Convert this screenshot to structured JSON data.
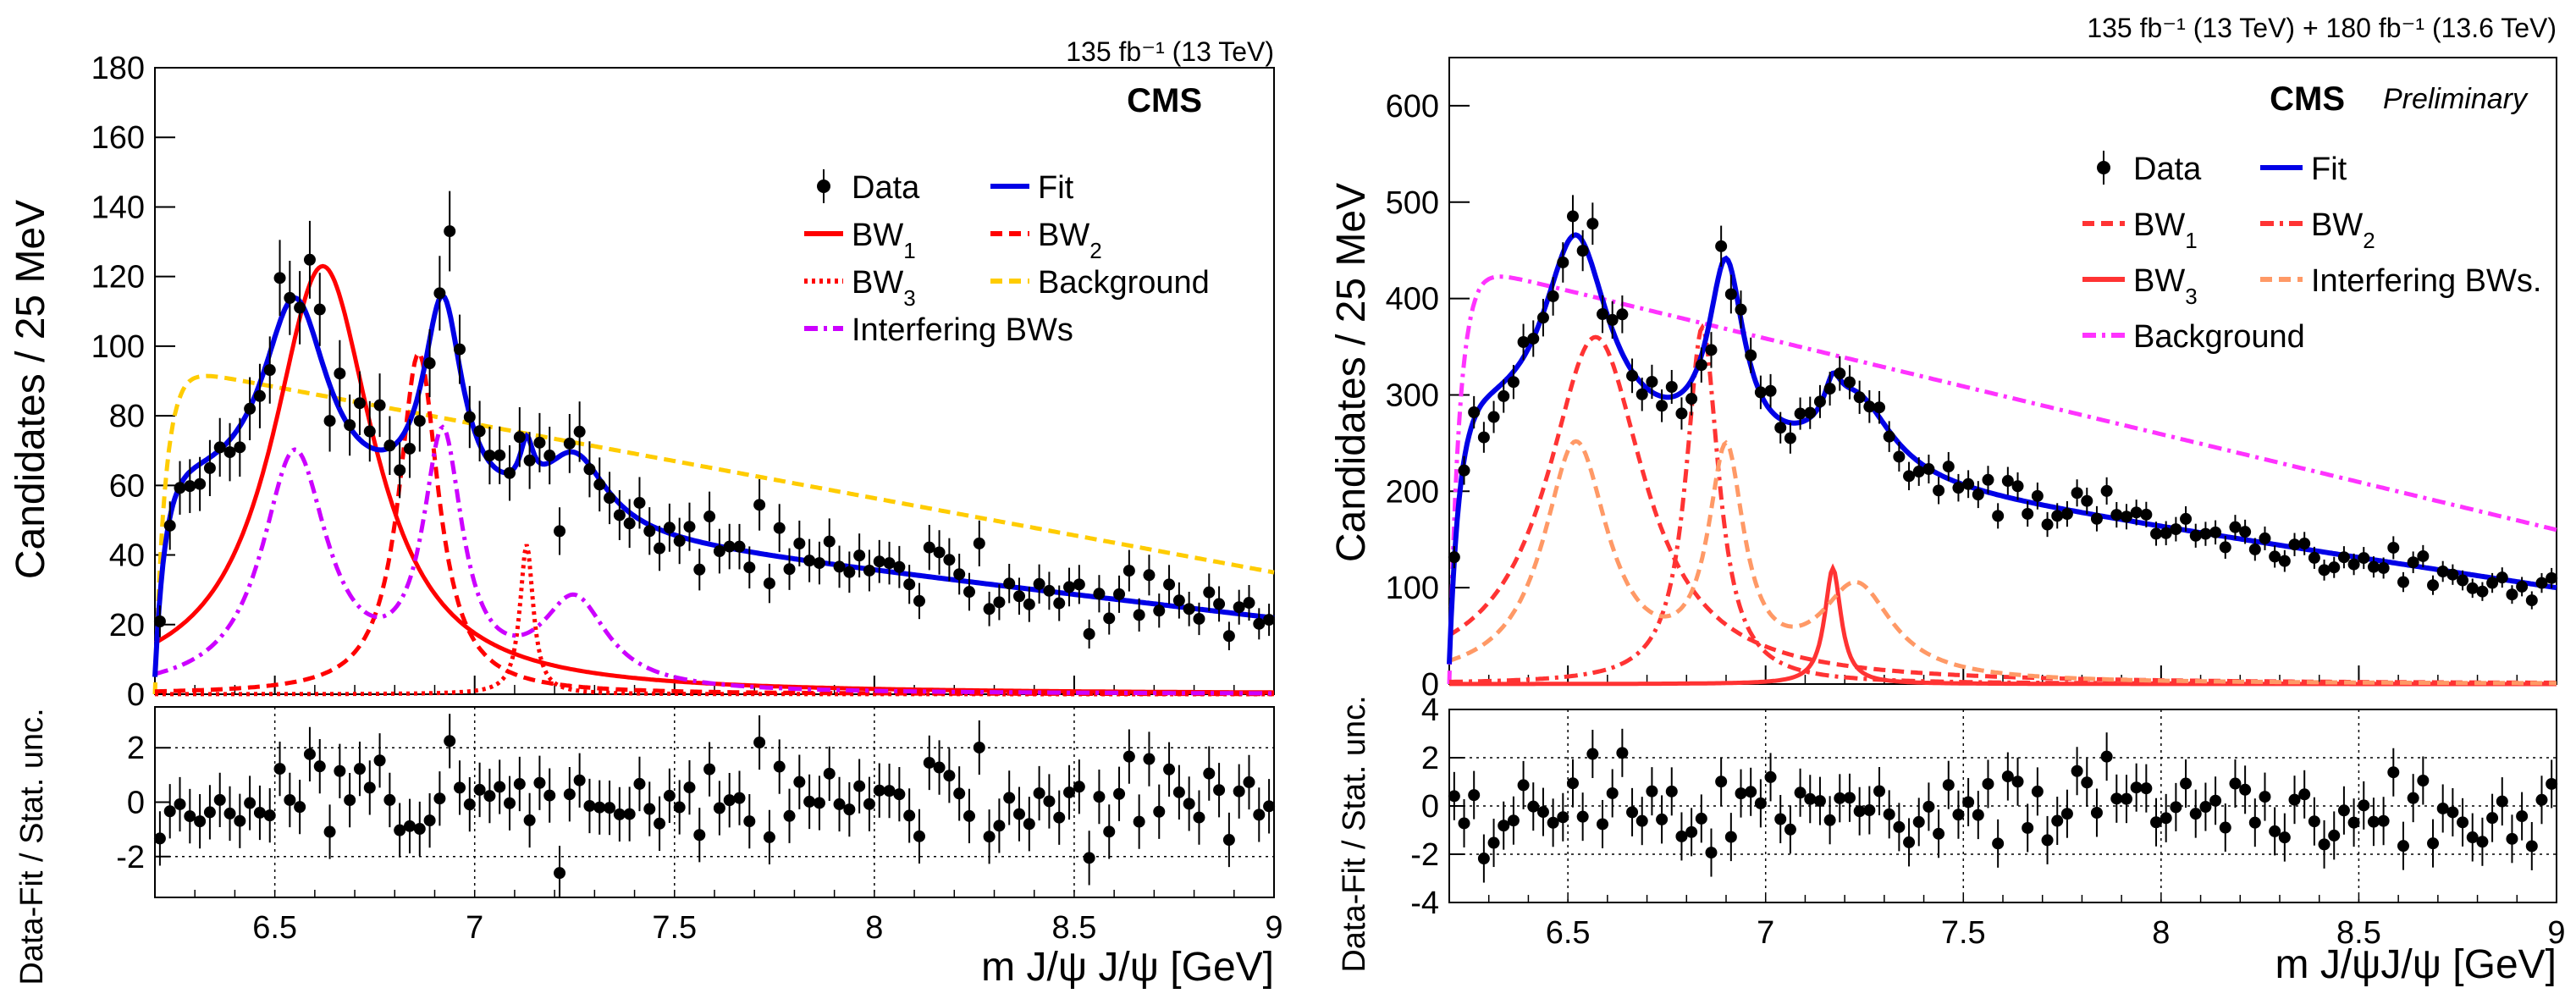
{
  "chart_data": [
    {
      "type": "line",
      "panel": "left",
      "lumi": "135 fb⁻¹ (13 TeV)",
      "experiment": "CMS",
      "xlabel": "m J/ψ J/ψ [GeV]",
      "ylabel": "Candidates / 25 MeV",
      "xlim": [
        6.2,
        9.0
      ],
      "ylim": [
        0,
        180
      ],
      "xticks": [
        "6.5",
        "7",
        "7.5",
        "8",
        "8.5",
        "9"
      ],
      "yticks": [
        "0",
        "20",
        "40",
        "60",
        "80",
        "100",
        "120",
        "140",
        "160",
        "180"
      ],
      "ratio": {
        "ylabel": "Data-Fit / Stat. unc.",
        "ylim": [
          -3.5,
          3.5
        ],
        "yticks": [
          "-2",
          "0",
          "2"
        ],
        "gridlines": [
          -2,
          2
        ]
      },
      "legend": [
        {
          "label": "Data",
          "sub": "",
          "style": "marker"
        },
        {
          "label": "Fit",
          "sub": "",
          "style": "solid",
          "color": "#0000e6"
        },
        {
          "label": "BW",
          "sub": "1",
          "style": "solid",
          "color": "#ff0000"
        },
        {
          "label": "BW",
          "sub": "2",
          "style": "dashed",
          "color": "#ff0000"
        },
        {
          "label": "BW",
          "sub": "3",
          "style": "dotted",
          "color": "#ff0000"
        },
        {
          "label": "Background",
          "sub": "",
          "style": "dashed",
          "color": "#ffcc00"
        },
        {
          "label": "Interfering BWs",
          "sub": "",
          "style": "dashdot",
          "color": "#cc00ff"
        }
      ],
      "components": {
        "bw1": {
          "mass": 6.62,
          "width": 0.31,
          "peak": 123
        },
        "bw2": {
          "mass": 6.86,
          "width": 0.12,
          "peak": 98
        },
        "bw3": {
          "mass": 7.13,
          "width": 0.04,
          "peak": 43
        },
        "interfering": [
          {
            "mass": 6.55,
            "width": 0.2,
            "peak": 68
          },
          {
            "mass": 6.92,
            "width": 0.12,
            "peak": 70
          },
          {
            "mass": 7.25,
            "width": 0.2,
            "peak": 25
          }
        ],
        "background": {
          "peak": 93,
          "at": 6.28,
          "at_end": 35
        }
      },
      "data_seed": 11
    },
    {
      "type": "line",
      "panel": "right",
      "lumi": "135 fb⁻¹ (13 TeV) + 180 fb⁻¹ (13.6 TeV)",
      "experiment": "CMS",
      "status": "Preliminary",
      "xlabel": "m J/ψJ/ψ [GeV]",
      "ylabel": "Candidates / 25 MeV",
      "xlim": [
        6.2,
        9.0
      ],
      "ylim": [
        0,
        650
      ],
      "xticks": [
        "6.5",
        "7",
        "7.5",
        "8",
        "8.5",
        "9"
      ],
      "yticks": [
        "0",
        "100",
        "200",
        "300",
        "400",
        "500",
        "600"
      ],
      "ratio": {
        "ylabel": "Data-Fit / Stat. unc.",
        "ylim": [
          -4,
          4
        ],
        "yticks": [
          "-4",
          "-2",
          "0",
          "2",
          "4"
        ],
        "gridlines": [
          -2,
          0,
          2
        ]
      },
      "legend": [
        {
          "label": "Data",
          "sub": "",
          "style": "marker"
        },
        {
          "label": "Fit",
          "sub": "",
          "style": "solid",
          "color": "#0000e6"
        },
        {
          "label": "BW",
          "sub": "1",
          "style": "dashed",
          "color": "#ff3333"
        },
        {
          "label": "BW",
          "sub": "2",
          "style": "dashdot",
          "color": "#ff3333"
        },
        {
          "label": "BW",
          "sub": "3",
          "style": "solid",
          "color": "#ff3333"
        },
        {
          "label": "Interfering BWs.",
          "sub": "",
          "style": "dashed",
          "color": "#ff9966"
        },
        {
          "label": "Background",
          "sub": "",
          "style": "dashdot",
          "color": "#ff33ff"
        }
      ],
      "components": {
        "bw1": {
          "mass": 6.57,
          "width": 0.3,
          "peak": 360
        },
        "bw2": {
          "mass": 6.84,
          "width": 0.1,
          "peak": 370
        },
        "bw3": {
          "mass": 7.17,
          "width": 0.05,
          "peak": 120
        },
        "interfering": [
          {
            "mass": 6.52,
            "width": 0.2,
            "peak": 245
          },
          {
            "mass": 6.9,
            "width": 0.11,
            "peak": 225
          },
          {
            "mass": 7.23,
            "width": 0.22,
            "peak": 95
          }
        ],
        "background": {
          "peak": 430,
          "at": 6.28,
          "at_end": 160
        }
      },
      "data_seed": 29
    }
  ]
}
